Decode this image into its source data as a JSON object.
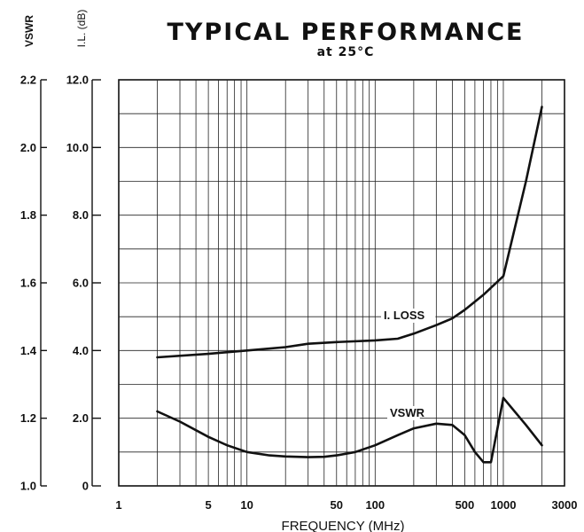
{
  "chart_data": {
    "type": "line",
    "title": "TYPICAL PERFORMANCE",
    "subtitle": "at 25°C",
    "xlabel": "FREQUENCY (MHz)",
    "x_scale": "log",
    "xlim": [
      1,
      3000
    ],
    "x_ticks": [
      1,
      5,
      10,
      50,
      100,
      500,
      1000,
      3000
    ],
    "x_tick_labels": [
      "1",
      "5",
      "10",
      "50",
      "100",
      "500",
      "1000",
      "3000"
    ],
    "y_left_outer": {
      "label": "VSWR",
      "ylim": [
        1.0,
        2.2
      ],
      "ticks": [
        1.0,
        1.2,
        1.4,
        1.6,
        1.8,
        2.0,
        2.2
      ],
      "tick_labels": [
        "1.0",
        "1.2",
        "1.4",
        "1.6",
        "1.8",
        "2.0",
        "2.2"
      ]
    },
    "y_left_inner": {
      "label": "I.L. (dB)",
      "ylim": [
        0,
        12
      ],
      "ticks": [
        0,
        2,
        4,
        6,
        8,
        10,
        12
      ],
      "tick_labels": [
        "0",
        "2.0",
        "4.0",
        "6.0",
        "8.0",
        "10.0",
        "12.0"
      ]
    },
    "grid": true,
    "series": [
      {
        "name": "I. LOSS",
        "axis": "y_left_inner",
        "x": [
          2,
          5,
          10,
          20,
          30,
          50,
          100,
          150,
          200,
          300,
          400,
          500,
          700,
          1000,
          1500,
          2000
        ],
        "y": [
          3.8,
          3.9,
          4.0,
          4.1,
          4.2,
          4.25,
          4.3,
          4.35,
          4.5,
          4.75,
          4.95,
          5.2,
          5.65,
          6.2,
          9.0,
          11.2
        ]
      },
      {
        "name": "VSWR",
        "axis": "y_left_outer",
        "x": [
          2,
          3,
          5,
          7,
          10,
          15,
          20,
          30,
          40,
          50,
          70,
          100,
          150,
          200,
          300,
          400,
          500,
          600,
          700,
          800,
          1000,
          1500,
          2000
        ],
        "y": [
          1.22,
          1.19,
          1.145,
          1.12,
          1.1,
          1.09,
          1.087,
          1.085,
          1.086,
          1.09,
          1.1,
          1.12,
          1.15,
          1.17,
          1.184,
          1.18,
          1.15,
          1.1,
          1.07,
          1.07,
          1.26,
          1.18,
          1.12
        ]
      }
    ]
  }
}
